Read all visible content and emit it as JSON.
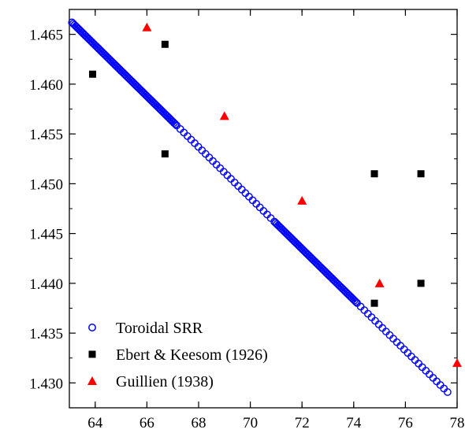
{
  "chart_data": {
    "type": "scatter",
    "title": "",
    "xlabel": "",
    "ylabel": "",
    "xlim": [
      63,
      78
    ],
    "ylim": [
      1.4275,
      1.4675
    ],
    "x_ticks": [
      64,
      66,
      68,
      70,
      72,
      74,
      76,
      78
    ],
    "x_tick_labels": [
      "64",
      "66",
      "68",
      "70",
      "72",
      "74",
      "76",
      "78"
    ],
    "y_ticks": [
      1.43,
      1.435,
      1.44,
      1.445,
      1.45,
      1.455,
      1.46,
      1.465
    ],
    "y_tick_labels": [
      "1.430",
      "1.435",
      "1.440",
      "1.445",
      "1.450",
      "1.455",
      "1.460",
      "1.465"
    ],
    "grid": false,
    "legend_position": "bottom-left",
    "toroidal_curve": {
      "x_start": 63.1,
      "y_start": 1.4662,
      "x_end": 77.7,
      "y_end": 1.4289,
      "dense_ranges": [
        [
          63.1,
          67.1
        ],
        [
          70.9,
          74.1
        ]
      ]
    },
    "series": [
      {
        "name": "Toroidal SRR",
        "marker": "open-circle",
        "color": "#0000ff",
        "points": []
      },
      {
        "name": "Ebert & Keesom (1926)",
        "marker": "square",
        "color": "#000000",
        "points": [
          [
            63.9,
            1.461
          ],
          [
            66.7,
            1.464
          ],
          [
            66.7,
            1.453
          ],
          [
            74.8,
            1.451
          ],
          [
            76.6,
            1.451
          ],
          [
            76.6,
            1.44
          ],
          [
            74.8,
            1.438
          ]
        ]
      },
      {
        "name": "Guillien (1938)",
        "marker": "triangle",
        "color": "#ff0000",
        "points": [
          [
            66.0,
            1.4657
          ],
          [
            69.0,
            1.4568
          ],
          [
            72.0,
            1.4483
          ],
          [
            75.0,
            1.44
          ],
          [
            78.0,
            1.432
          ]
        ]
      }
    ]
  }
}
